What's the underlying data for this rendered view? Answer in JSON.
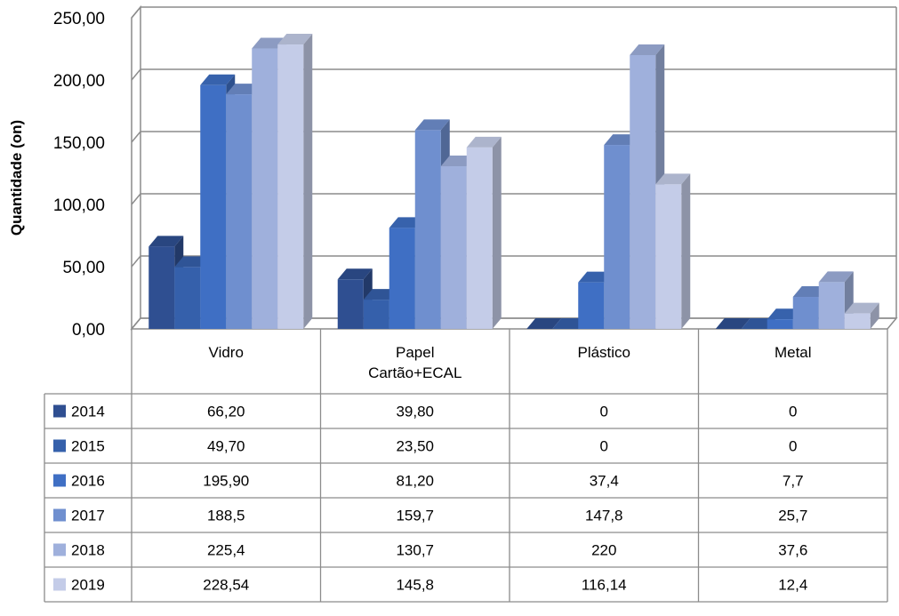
{
  "chart_data": {
    "type": "bar",
    "title": "",
    "xlabel": "",
    "ylabel": "Quantidade (on)",
    "ylim": [
      0,
      250
    ],
    "yticks": [
      "0,00",
      "50,00",
      "100,00",
      "150,00",
      "200,00",
      "250,00"
    ],
    "grid": true,
    "legend": "table-left",
    "categories": [
      "Vidro",
      "Papel Cartão+ECAL",
      "Plástico",
      "Metal"
    ],
    "category_lines": [
      [
        "Vidro"
      ],
      [
        "Papel",
        "Cartão+ECAL"
      ],
      [
        "Plástico"
      ],
      [
        "Metal"
      ]
    ],
    "series": [
      {
        "name": "2014",
        "color": "#2f4f91",
        "values": [
          66.2,
          39.8,
          0,
          0
        ],
        "labels": [
          "66,20",
          "39,80",
          "0",
          "0"
        ]
      },
      {
        "name": "2015",
        "color": "#3560ab",
        "values": [
          49.7,
          23.5,
          0,
          0
        ],
        "labels": [
          "49,70",
          "23,50",
          "0",
          "0"
        ]
      },
      {
        "name": "2016",
        "color": "#3f6fc4",
        "values": [
          195.9,
          81.2,
          37.4,
          7.7
        ],
        "labels": [
          "195,90",
          "81,20",
          "37,4",
          "7,7"
        ]
      },
      {
        "name": "2017",
        "color": "#6f8fcf",
        "values": [
          188.5,
          159.7,
          147.8,
          25.7
        ],
        "labels": [
          "188,5",
          "159,7",
          "147,8",
          "25,7"
        ]
      },
      {
        "name": "2018",
        "color": "#9fb0dc",
        "values": [
          225.4,
          130.7,
          220,
          37.6
        ],
        "labels": [
          "225,4",
          "130,7",
          "220",
          "37,6"
        ]
      },
      {
        "name": "2019",
        "color": "#c4cce8",
        "values": [
          228.54,
          145.8,
          116.14,
          12.4
        ],
        "labels": [
          "228,54",
          "145,8",
          "116,14",
          "12,4"
        ]
      }
    ]
  }
}
